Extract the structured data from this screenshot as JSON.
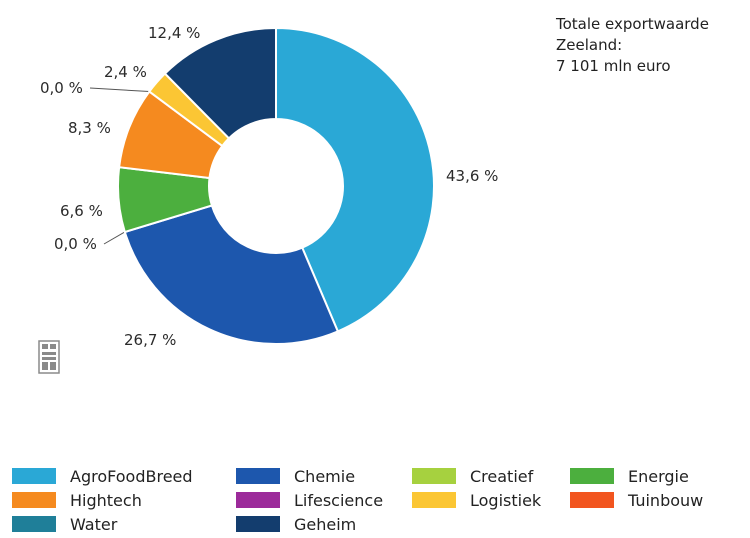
{
  "chart_data": {
    "type": "pie",
    "donut": true,
    "slices": [
      {
        "name": "AgroFoodBreed",
        "value": 43.6,
        "label": "43,6 %",
        "color": "#2aa8d6"
      },
      {
        "name": "Chemie",
        "value": 26.7,
        "label": "26,7 %",
        "color": "#1d57ad"
      },
      {
        "name": "Water",
        "value": 0.0,
        "label": "0,0 %",
        "color": "#1f7f99"
      },
      {
        "name": "Energie",
        "value": 6.6,
        "label": "6,6 %",
        "color": "#4caf3e"
      },
      {
        "name": "Hightech",
        "value": 8.3,
        "label": "8,3 %",
        "color": "#f58a1f"
      },
      {
        "name": "Lifescience",
        "value": 0.0,
        "label": "0,0 %",
        "color": "#9c2a9a"
      },
      {
        "name": "Logistiek",
        "value": 2.4,
        "label": "2,4 %",
        "color": "#fbc634"
      },
      {
        "name": "Geheim",
        "value": 12.4,
        "label": "12,4 %",
        "color": "#133d6e"
      }
    ],
    "annotation": [
      "Totale exportwaarde",
      "Zeeland:",
      "7 101 mln euro"
    ],
    "legend": [
      {
        "label": "AgroFoodBreed",
        "color": "#2aa8d6"
      },
      {
        "label": "Chemie",
        "color": "#1d57ad"
      },
      {
        "label": "Creatief",
        "color": "#a6d13f"
      },
      {
        "label": "Energie",
        "color": "#4caf3e"
      },
      {
        "label": "Hightech",
        "color": "#f58a1f"
      },
      {
        "label": "Lifescience",
        "color": "#9c2a9a"
      },
      {
        "label": "Logistiek",
        "color": "#fbc634"
      },
      {
        "label": "Tuinbouw",
        "color": "#f2551f"
      },
      {
        "label": "Water",
        "color": "#1f7f99"
      },
      {
        "label": "Geheim",
        "color": "#133d6e"
      }
    ],
    "legend_placement": "bottom"
  },
  "logo": {
    "name": "cbs-logo-icon",
    "color": "#8a8a8a"
  }
}
